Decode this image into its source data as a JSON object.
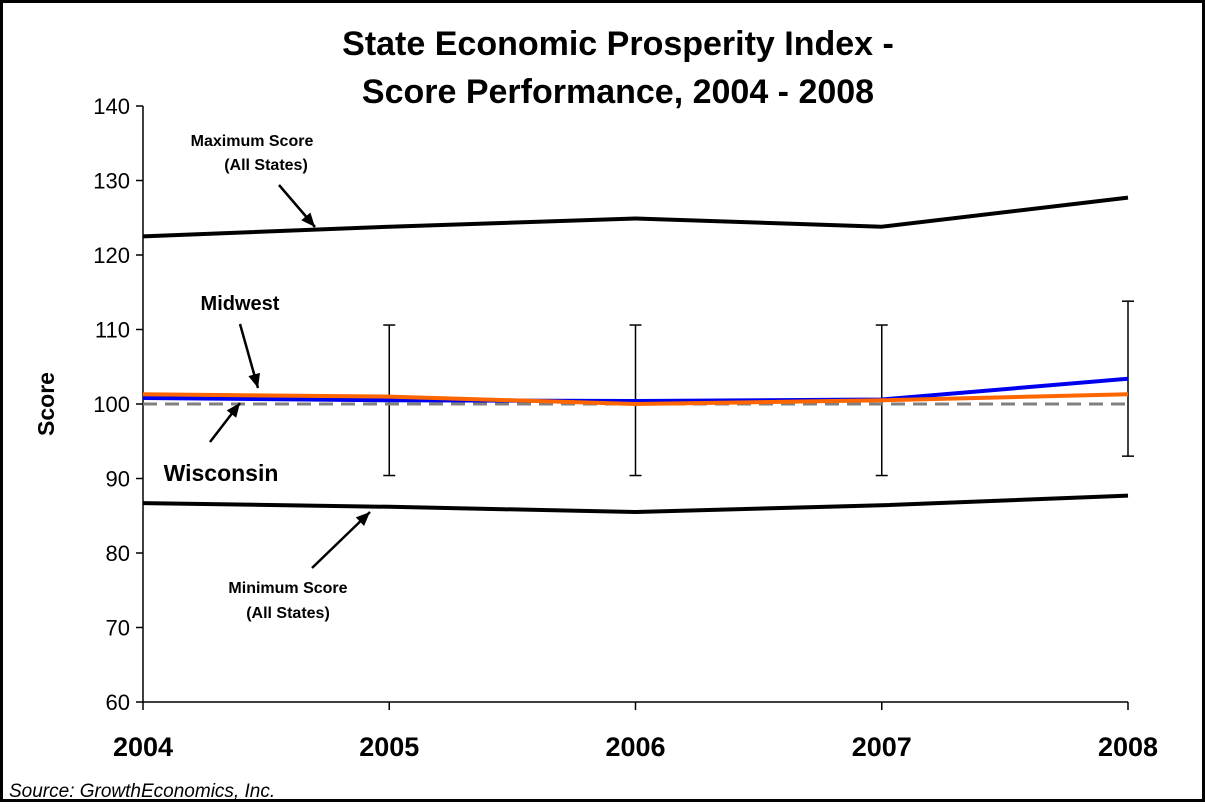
{
  "chart_data": {
    "type": "line",
    "title_line1": "State Economic Prosperity Index -",
    "title_line2": "Score Performance, 2004 - 2008",
    "xlabel": "",
    "ylabel": "Score",
    "categories": [
      "2004",
      "2005",
      "2006",
      "2007",
      "2008"
    ],
    "ylim": [
      60,
      140
    ],
    "yticks": [
      60,
      70,
      80,
      90,
      100,
      110,
      120,
      130,
      140
    ],
    "grid": false,
    "series": [
      {
        "name": "Maximum Score (All States)",
        "color": "#000000",
        "values": [
          122.5,
          123.8,
          124.9,
          123.8,
          127.7
        ]
      },
      {
        "name": "Minimum Score (All States)",
        "color": "#000000",
        "values": [
          86.7,
          86.2,
          85.5,
          86.4,
          87.7
        ]
      },
      {
        "name": "Wisconsin",
        "color": "#0000ee",
        "values": [
          100.8,
          100.5,
          100.4,
          100.6,
          103.4
        ]
      },
      {
        "name": "Midwest",
        "color": "#ff6600",
        "values": [
          101.3,
          101.0,
          100.0,
          100.5,
          101.3
        ]
      },
      {
        "name": "",
        "color": "#808080",
        "dashed": true,
        "values": [
          100,
          100,
          100,
          100,
          100
        ]
      }
    ],
    "error_bars": [
      {
        "x": "2005",
        "low": 90.4,
        "high": 110.6
      },
      {
        "x": "2006",
        "low": 90.4,
        "high": 110.6
      },
      {
        "x": "2007",
        "low": 90.4,
        "high": 110.6
      },
      {
        "x": "2008",
        "low": 93.0,
        "high": 113.8
      }
    ],
    "annotations": [
      {
        "id": "max",
        "lines": [
          "Maximum Score",
          "(All States)"
        ]
      },
      {
        "id": "midwest",
        "lines": [
          "Midwest"
        ]
      },
      {
        "id": "wisconsin",
        "lines": [
          "Wisconsin"
        ]
      },
      {
        "id": "min",
        "lines": [
          "Minimum Score",
          "(All States)"
        ]
      }
    ],
    "source": "Source: GrowthEconomics, Inc."
  }
}
